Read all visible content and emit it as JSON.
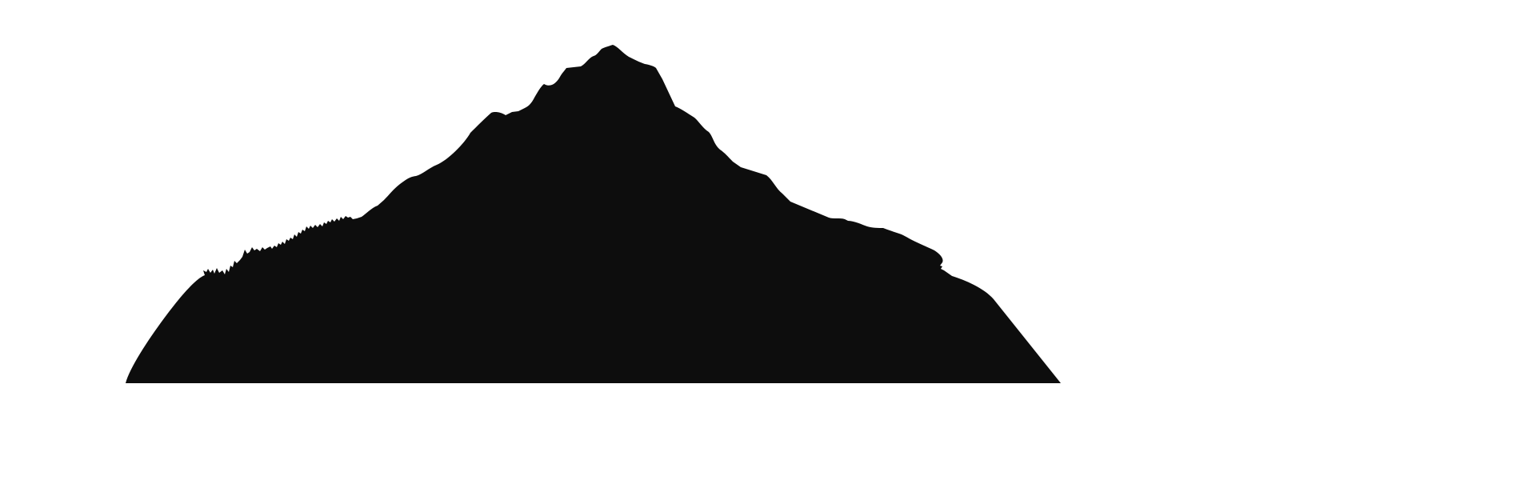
{
  "scene": {
    "subject": "mountain-silhouette",
    "background_color": "#ffffff",
    "silhouette_color": "#0d0d0d"
  }
}
